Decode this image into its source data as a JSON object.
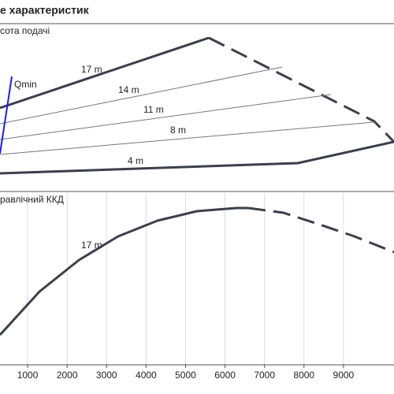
{
  "chart_data": [
    {
      "type": "line",
      "title": "е характеристик",
      "y_label": "сота подачі",
      "xlim": [
        300,
        10280
      ],
      "ylim": [
        0,
        21
      ],
      "annotations": [
        "17 m",
        "14 m",
        "11 m",
        "8 m",
        "4 m",
        "Qmin"
      ],
      "series": [
        {
          "x": [
            300,
            5590
          ],
          "values": [
            10.3,
            19.2
          ],
          "color": "#3a3f4b",
          "line_width": 3,
          "dash": false
        },
        {
          "x": [
            5590,
            9780,
            10280
          ],
          "values": [
            19.2,
            8.6,
            6.0
          ],
          "color": "#3a3f4b",
          "line_width": 3,
          "dash": true
        },
        {
          "x": [
            300,
            7840,
            10280
          ],
          "values": [
            2.0,
            3.3,
            6.0
          ],
          "color": "#3a3f4b",
          "line_width": 3,
          "dash": false
        },
        {
          "x": [
            300,
            7450
          ],
          "values": [
            8.3,
            15.5
          ],
          "color": "#777777",
          "line_width": 1,
          "dash": false
        },
        {
          "x": [
            300,
            8680
          ],
          "values": [
            6.3,
            12.0
          ],
          "color": "#777777",
          "line_width": 1,
          "dash": false
        },
        {
          "x": [
            300,
            9780
          ],
          "values": [
            4.4,
            8.5
          ],
          "color": "#777777",
          "line_width": 1,
          "dash": false
        },
        {
          "x": [
            300,
            600
          ],
          "values": [
            4.5,
            14.3
          ],
          "color": "#1a1aff",
          "line_width": 2,
          "dash": false
        }
      ]
    },
    {
      "type": "line",
      "y_label": "равлічний ККД",
      "xlim": [
        300,
        10280
      ],
      "ylim": [
        0,
        21.7
      ],
      "xticks": [
        1000,
        2000,
        3000,
        4000,
        5000,
        6000,
        7000,
        8000,
        9000
      ],
      "grid": true,
      "annotations": [
        "17 m"
      ],
      "series": [
        {
          "x": [
            300,
            1300,
            2300,
            3290,
            4290,
            5290,
            6290,
            6590
          ],
          "values": [
            3.7,
            9.2,
            13.2,
            16.2,
            18.2,
            19.4,
            19.8,
            19.8
          ],
          "color": "#3a3f4b",
          "line_width": 3,
          "dash": false
        },
        {
          "x": [
            6590,
            7480,
            8280,
            9280,
            10280
          ],
          "values": [
            19.8,
            19.2,
            17.9,
            16.2,
            14.2
          ],
          "color": "#3a3f4b",
          "line_width": 3,
          "dash": true
        }
      ]
    }
  ]
}
